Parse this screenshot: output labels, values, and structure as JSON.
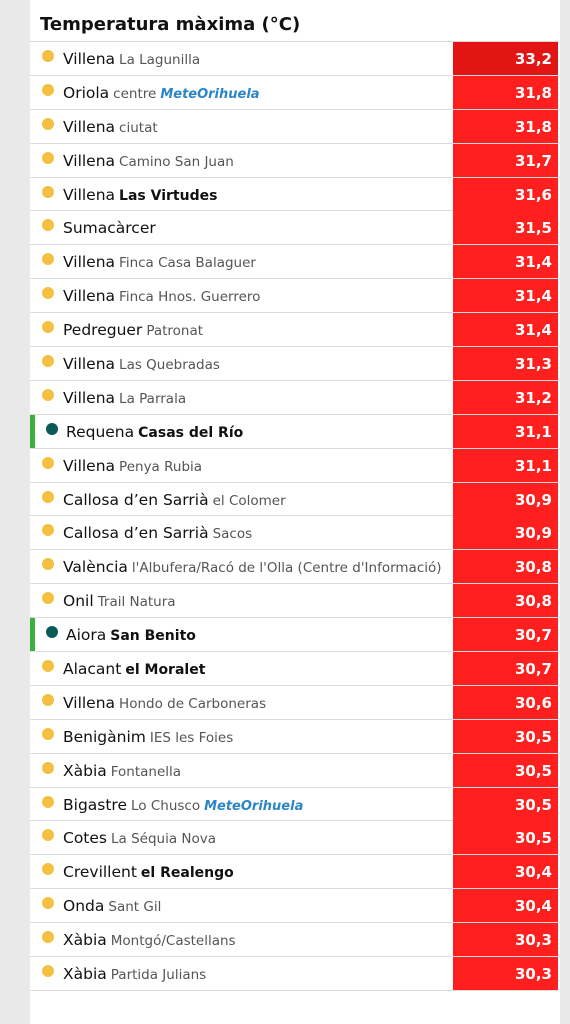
{
  "title": "Temperatura màxima (°C)",
  "colors": {
    "hot": "#ff1f1f",
    "hottest": "#e21414",
    "sun_dot": "#f3c043",
    "accent_dot": "#0b5a5a",
    "accent_bar": "#3bb13b"
  },
  "rows": [
    {
      "city": "Villena",
      "station": "La Lagunilla",
      "bold": false,
      "logo": "",
      "value": "33,2",
      "accent": false,
      "icon": "sun-icon"
    },
    {
      "city": "Oriola",
      "station": "centre",
      "bold": false,
      "logo": "MeteOrihuela",
      "value": "31,8",
      "accent": false,
      "icon": "sun-icon"
    },
    {
      "city": "Villena",
      "station": "ciutat",
      "bold": false,
      "logo": "",
      "value": "31,8",
      "accent": false,
      "icon": "sun-icon"
    },
    {
      "city": "Villena",
      "station": "Camino San Juan",
      "bold": false,
      "logo": "",
      "value": "31,7",
      "accent": false,
      "icon": "sun-icon"
    },
    {
      "city": "Villena",
      "station": "Las Virtudes",
      "bold": true,
      "logo": "",
      "value": "31,6",
      "accent": false,
      "icon": "sun-icon"
    },
    {
      "city": "Sumacàrcer",
      "station": "",
      "bold": false,
      "logo": "",
      "value": "31,5",
      "accent": false,
      "icon": "sun-icon"
    },
    {
      "city": "Villena",
      "station": "Finca Casa Balaguer",
      "bold": false,
      "logo": "",
      "value": "31,4",
      "accent": false,
      "icon": "sun-icon"
    },
    {
      "city": "Villena",
      "station": "Finca Hnos. Guerrero",
      "bold": false,
      "logo": "",
      "value": "31,4",
      "accent": false,
      "icon": "sun-icon"
    },
    {
      "city": "Pedreguer",
      "station": "Patronat",
      "bold": false,
      "logo": "",
      "value": "31,4",
      "accent": false,
      "icon": "sun-icon"
    },
    {
      "city": "Villena",
      "station": "Las Quebradas",
      "bold": false,
      "logo": "",
      "value": "31,3",
      "accent": false,
      "icon": "sun-icon"
    },
    {
      "city": "Villena",
      "station": "La Parrala",
      "bold": false,
      "logo": "",
      "value": "31,2",
      "accent": false,
      "icon": "sun-icon"
    },
    {
      "city": "Requena",
      "station": "Casas del Río",
      "bold": true,
      "logo": "",
      "value": "31,1",
      "accent": true,
      "icon": "station-dot-icon"
    },
    {
      "city": "Villena",
      "station": "Penya Rubia",
      "bold": false,
      "logo": "",
      "value": "31,1",
      "accent": false,
      "icon": "sun-icon"
    },
    {
      "city": "Callosa d’en Sarrià",
      "station": "el Colomer",
      "bold": false,
      "logo": "",
      "value": "30,9",
      "accent": false,
      "icon": "sun-icon"
    },
    {
      "city": "Callosa d’en Sarrià",
      "station": "Sacos",
      "bold": false,
      "logo": "",
      "value": "30,9",
      "accent": false,
      "icon": "sun-icon"
    },
    {
      "city": "València",
      "station": "l'Albufera/Racó de l'Olla (Centre d'Informació)",
      "bold": false,
      "logo": "",
      "value": "30,8",
      "accent": false,
      "icon": "sun-icon"
    },
    {
      "city": "Onil",
      "station": "Trail Natura",
      "bold": false,
      "logo": "",
      "value": "30,8",
      "accent": false,
      "icon": "sun-icon"
    },
    {
      "city": "Aiora",
      "station": "San Benito",
      "bold": true,
      "logo": "",
      "value": "30,7",
      "accent": true,
      "icon": "station-dot-icon"
    },
    {
      "city": "Alacant",
      "station": "el Moralet",
      "bold": true,
      "logo": "",
      "value": "30,7",
      "accent": false,
      "icon": "sun-icon"
    },
    {
      "city": "Villena",
      "station": "Hondo de Carboneras",
      "bold": false,
      "logo": "",
      "value": "30,6",
      "accent": false,
      "icon": "sun-icon"
    },
    {
      "city": "Benigànim",
      "station": "IES les Foies",
      "bold": false,
      "logo": "",
      "value": "30,5",
      "accent": false,
      "icon": "sun-icon"
    },
    {
      "city": "Xàbia",
      "station": "Fontanella",
      "bold": false,
      "logo": "",
      "value": "30,5",
      "accent": false,
      "icon": "sun-icon"
    },
    {
      "city": "Bigastre",
      "station": "Lo Chusco",
      "bold": false,
      "logo": "MeteOrihuela",
      "value": "30,5",
      "accent": false,
      "icon": "sun-icon"
    },
    {
      "city": "Cotes",
      "station": "La Séquia Nova",
      "bold": false,
      "logo": "",
      "value": "30,5",
      "accent": false,
      "icon": "sun-icon"
    },
    {
      "city": "Crevillent",
      "station": "el Realengo",
      "bold": true,
      "logo": "",
      "value": "30,4",
      "accent": false,
      "icon": "sun-icon"
    },
    {
      "city": "Onda",
      "station": "Sant Gil",
      "bold": false,
      "logo": "",
      "value": "30,4",
      "accent": false,
      "icon": "sun-icon"
    },
    {
      "city": "Xàbia",
      "station": "Montgó/Castellans",
      "bold": false,
      "logo": "",
      "value": "30,3",
      "accent": false,
      "icon": "sun-icon"
    },
    {
      "city": "Xàbia",
      "station": "Partida Julians",
      "bold": false,
      "logo": "",
      "value": "30,3",
      "accent": false,
      "icon": "sun-icon"
    }
  ]
}
